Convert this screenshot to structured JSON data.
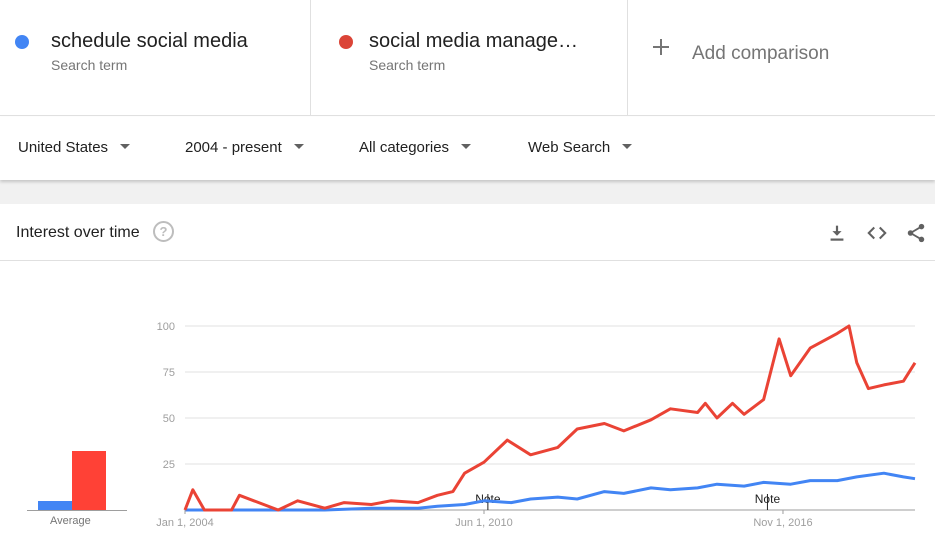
{
  "terms": [
    {
      "name": "schedule social media",
      "sub": "Search term",
      "color": "#4285f4"
    },
    {
      "name": "social media manage…",
      "sub": "Search term",
      "color": "#db4437"
    }
  ],
  "add_comparison": "Add comparison",
  "filters": {
    "region": "United States",
    "time": "2004 - present",
    "category": "All categories",
    "property": "Web Search"
  },
  "card": {
    "title": "Interest over time",
    "help_glyph": "?"
  },
  "average": {
    "label": "Average",
    "values": [
      5,
      32
    ],
    "colors": [
      "#4285f4",
      "#ff4136"
    ]
  },
  "chart_data": {
    "type": "line",
    "x_range": [
      "2004-01",
      "2019-09"
    ],
    "x_tick_labels": [
      "Jan 1, 2004",
      "Jun 1, 2010",
      "Nov 1, 2016"
    ],
    "x_tick_dates": [
      "2004-01",
      "2010-06",
      "2016-11"
    ],
    "y_ticks": [
      25,
      50,
      75,
      100
    ],
    "ylim": [
      0,
      100
    ],
    "grid": true,
    "notes": [
      {
        "label": "Note",
        "date": "2010-07"
      },
      {
        "label": "Note",
        "date": "2016-07"
      }
    ],
    "series": [
      {
        "color": "#4285f4",
        "dates": [
          "2004-01",
          "2005-01",
          "2006-01",
          "2007-01",
          "2008-01",
          "2009-01",
          "2009-06",
          "2010-01",
          "2010-06",
          "2011-01",
          "2011-06",
          "2012-01",
          "2012-06",
          "2013-01",
          "2013-06",
          "2014-01",
          "2014-06",
          "2015-01",
          "2015-06",
          "2016-01",
          "2016-06",
          "2017-01",
          "2017-06",
          "2018-01",
          "2018-06",
          "2019-01",
          "2019-06",
          "2019-09"
        ],
        "values": [
          0,
          0,
          0,
          0,
          1,
          1,
          2,
          3,
          5,
          4,
          6,
          7,
          6,
          10,
          9,
          12,
          11,
          12,
          14,
          13,
          15,
          14,
          16,
          16,
          18,
          20,
          18,
          17
        ]
      },
      {
        "color": "#ea4335",
        "dates": [
          "2004-01",
          "2004-03",
          "2004-06",
          "2005-01",
          "2005-03",
          "2006-01",
          "2006-06",
          "2007-01",
          "2007-06",
          "2008-01",
          "2008-06",
          "2009-01",
          "2009-06",
          "2009-10",
          "2010-01",
          "2010-06",
          "2010-12",
          "2011-06",
          "2012-01",
          "2012-06",
          "2013-01",
          "2013-06",
          "2014-01",
          "2014-06",
          "2015-01",
          "2015-03",
          "2015-06",
          "2015-10",
          "2016-01",
          "2016-06",
          "2016-10",
          "2017-01",
          "2017-06",
          "2018-01",
          "2018-04",
          "2018-06",
          "2018-09",
          "2019-01",
          "2019-06",
          "2019-09"
        ],
        "values": [
          0,
          11,
          0,
          0,
          8,
          0,
          5,
          1,
          4,
          3,
          5,
          4,
          8,
          10,
          20,
          26,
          38,
          30,
          34,
          44,
          47,
          43,
          49,
          55,
          53,
          58,
          50,
          58,
          52,
          60,
          93,
          73,
          88,
          96,
          100,
          80,
          66,
          68,
          70,
          80
        ]
      }
    ]
  }
}
